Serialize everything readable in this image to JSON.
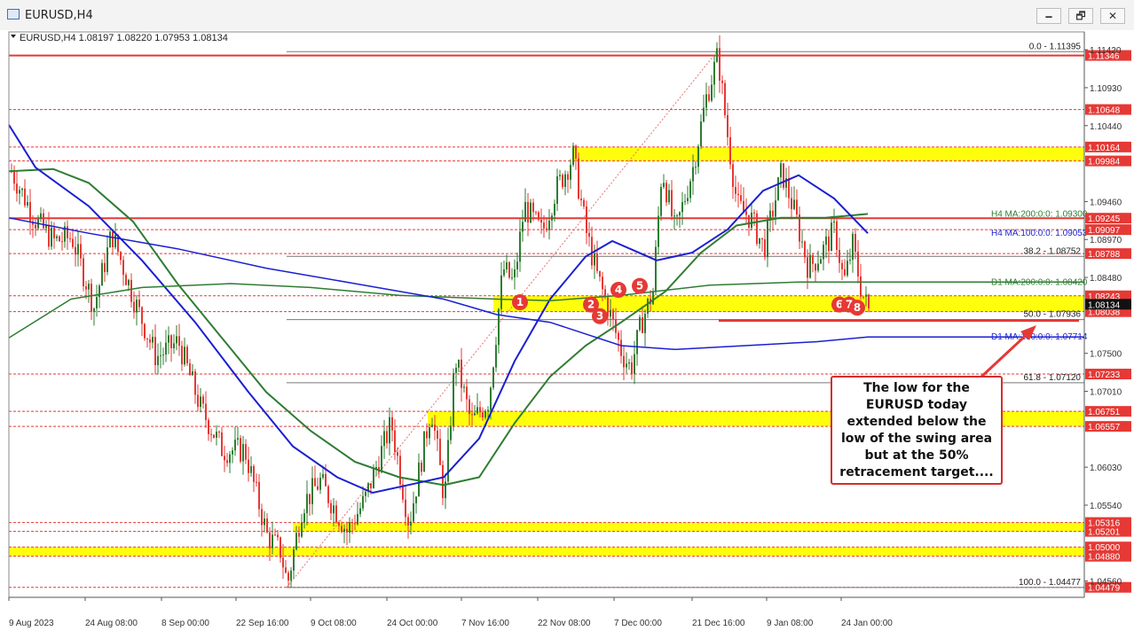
{
  "window": {
    "title": "EURUSD,H4",
    "buttons": {
      "minimize": "🗕",
      "restore": "🗗",
      "close": "✕"
    }
  },
  "chart_data": {
    "type": "line",
    "symbol_header": "EURUSD,H4  1.08197  1.08220  1.07953  1.08134",
    "x_axis_labels": [
      "9 Aug 2023",
      "24 Aug 08:00",
      "8 Sep 00:00",
      "22 Sep 16:00",
      "9 Oct 08:00",
      "24 Oct 00:00",
      "7 Nov 16:00",
      "22 Nov 08:00",
      "7 Dec 00:00",
      "21 Dec 16:00",
      "9 Jan 08:00",
      "24 Jan 00:00"
    ],
    "y_axis_labels": [
      "1.11420",
      "1.10930",
      "1.10440",
      "1.09460",
      "1.08970",
      "1.08480",
      "1.07500",
      "1.07010",
      "1.06030",
      "1.05540",
      "1.04560"
    ],
    "ylim": [
      1.0435,
      1.1165
    ],
    "price_levels": [
      {
        "value": 1.11346,
        "label": "1.11346",
        "color": "#e53935",
        "style": "thick"
      },
      {
        "value": 1.10648,
        "label": "1.10648",
        "color": "#e53935",
        "style": "dashed"
      },
      {
        "value": 1.10164,
        "label": "1.10164",
        "color": "#e53935",
        "style": "dashed"
      },
      {
        "value": 1.09984,
        "label": "1.09984",
        "color": "#e53935",
        "style": "dashed"
      },
      {
        "value": 1.09245,
        "label": "1.09245",
        "color": "#e53935",
        "style": "thick"
      },
      {
        "value": 1.09097,
        "label": "1.09097",
        "color": "#e53935",
        "style": "dashed"
      },
      {
        "value": 1.08788,
        "label": "1.08788",
        "color": "#e53935",
        "style": "dashed"
      },
      {
        "value": 1.08243,
        "label": "1.08243",
        "color": "#e53935",
        "style": "dashed"
      },
      {
        "value": 1.08038,
        "label": "1.08038",
        "color": "#e53935",
        "style": "dashed"
      },
      {
        "value": 1.07233,
        "label": "1.07233",
        "color": "#e53935",
        "style": "dashed"
      },
      {
        "value": 1.06751,
        "label": "1.06751",
        "color": "#e53935",
        "style": "dashed"
      },
      {
        "value": 1.06557,
        "label": "1.06557",
        "color": "#e53935",
        "style": "dashed"
      },
      {
        "value": 1.05316,
        "label": "1.05316",
        "color": "#e53935",
        "style": "dashed"
      },
      {
        "value": 1.05201,
        "label": "1.05201",
        "color": "#e53935",
        "style": "dashed"
      },
      {
        "value": 1.05,
        "label": "1.05000",
        "color": "#e53935",
        "style": "dashed"
      },
      {
        "value": 1.0488,
        "label": "1.04880",
        "color": "#e53935",
        "style": "dashed"
      },
      {
        "value": 1.04479,
        "label": "1.04479",
        "color": "#e53935",
        "style": "dashed"
      }
    ],
    "current_price": {
      "value": 1.08134,
      "label": "1.08134"
    },
    "fib_levels": [
      {
        "value": 1.11395,
        "label": "0.0 - 1.11395"
      },
      {
        "value": 1.08752,
        "label": "38.2 - 1.08752"
      },
      {
        "value": 1.07936,
        "label": "50.0 - 1.07936"
      },
      {
        "value": 1.0712,
        "label": "61.8 - 1.07120"
      },
      {
        "value": 1.04477,
        "label": "100.0 - 1.04477"
      }
    ],
    "ma_labels": [
      {
        "value": 1.093,
        "label": "H4 MA:200:0:0: 1.09300",
        "color": "#2e7d32"
      },
      {
        "value": 1.09053,
        "label": "H4 MA:100:0:0: 1.09053",
        "color": "#1a1fd1"
      },
      {
        "value": 1.0842,
        "label": "D1 MA:200:0:0: 1.08420",
        "color": "#2e7d32"
      },
      {
        "value": 1.07714,
        "label": "D1 MA:100:0:0: 1.07714",
        "color": "#1a1fd1"
      }
    ],
    "zones": [
      {
        "from": 1.10164,
        "to": 1.09984
      },
      {
        "from": 1.08243,
        "to": 1.08038
      },
      {
        "from": 1.06751,
        "to": 1.06557
      },
      {
        "from": 1.05316,
        "to": 1.05201
      },
      {
        "from": 1.05,
        "to": 1.0488
      }
    ],
    "markers": [
      "1",
      "2",
      "3",
      "4",
      "5",
      "6",
      "7",
      "8"
    ],
    "annotation": "The low for the EURUSD today extended below the low of the swing area but at the 50% retracement target...."
  },
  "colors": {
    "bull_candle": "#2e7d32",
    "bear_candle": "#e53935",
    "zone": "#ffff00",
    "marker": "#e53935",
    "ma_green": "#2e7d32",
    "ma_blue": "#1a1fd1"
  }
}
